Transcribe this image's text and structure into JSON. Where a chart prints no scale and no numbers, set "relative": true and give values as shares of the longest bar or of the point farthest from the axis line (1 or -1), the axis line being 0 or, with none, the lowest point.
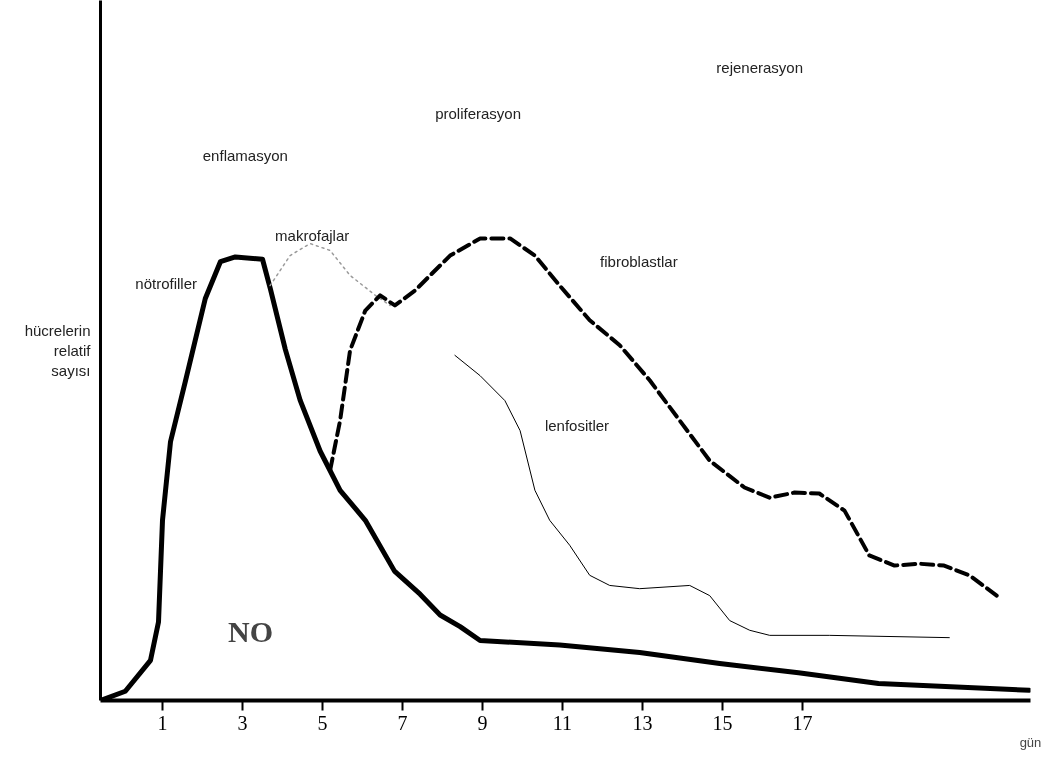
{
  "chart_data": {
    "type": "line",
    "relative": true,
    "xlabel": "gün",
    "ylabel": "hücrelerin relatif sayısı",
    "xlim": [
      -0.55,
      22.7
    ],
    "xticks": [
      1,
      3,
      5,
      7,
      9,
      11,
      13,
      15,
      17
    ],
    "grid": false,
    "annotations": [
      "enflamasyon",
      "proliferasyon",
      "rejenerasyon",
      "NO"
    ],
    "series": [
      {
        "name": "nötrofiller",
        "color": "#000000",
        "line_style": "solid",
        "x": [
          -0.55,
          0.07,
          0.7,
          0.9,
          1.0,
          1.2,
          1.57,
          2.07,
          2.45,
          2.82,
          3.5,
          3.7,
          4.07,
          4.44,
          4.94,
          5.44,
          6.07,
          6.8,
          7.44,
          7.94,
          8.44,
          8.94,
          10.93,
          12.93,
          14.93,
          16.9,
          18.9,
          22.67
        ],
        "values": [
          0,
          0.02,
          0.087,
          0.17,
          0.39,
          0.56,
          0.69,
          0.87,
          0.95,
          0.96,
          0.955,
          0.89,
          0.76,
          0.65,
          0.54,
          0.455,
          0.39,
          0.28,
          0.23,
          0.185,
          0.16,
          0.13,
          0.12,
          0.104,
          0.08,
          0.06,
          0.037,
          0.022
        ]
      },
      {
        "name": "makrofajlar",
        "color": "#999999",
        "line_style": "dotted",
        "x": [
          3.69,
          4.19,
          4.69,
          5.19,
          5.69,
          6.32,
          6.69
        ],
        "values": [
          0.898,
          0.963,
          0.989,
          0.974,
          0.92,
          0.877,
          0.855
        ]
      },
      {
        "name": "fibroblastlar",
        "color": "#000000",
        "line_style": "dashed",
        "x": [
          5.19,
          5.44,
          5.69,
          6.07,
          6.44,
          6.81,
          7.31,
          7.69,
          8.19,
          8.94,
          9.69,
          10.31,
          10.93,
          11.68,
          12.43,
          13.18,
          13.93,
          14.68,
          15.55,
          16.18,
          16.8,
          17.42,
          18.05,
          18.67,
          19.3,
          19.92,
          20.54,
          21.17,
          21.92
        ],
        "values": [
          0.498,
          0.606,
          0.758,
          0.844,
          0.877,
          0.855,
          0.887,
          0.92,
          0.963,
          1.0,
          1.0,
          0.963,
          0.898,
          0.823,
          0.769,
          0.693,
          0.606,
          0.519,
          0.461,
          0.439,
          0.45,
          0.448,
          0.411,
          0.314,
          0.292,
          0.296,
          0.292,
          0.271,
          0.223
        ]
      },
      {
        "name": "lenfositler",
        "color": "#000000",
        "line_style": "solid",
        "x": [
          8.31,
          8.94,
          9.56,
          9.94,
          10.31,
          10.68,
          11.18,
          11.68,
          12.18,
          12.93,
          14.18,
          14.68,
          15.18,
          15.68,
          16.18,
          17.67,
          20.67
        ],
        "values": [
          0.747,
          0.703,
          0.649,
          0.584,
          0.455,
          0.39,
          0.336,
          0.271,
          0.249,
          0.242,
          0.249,
          0.227,
          0.173,
          0.152,
          0.141,
          0.141,
          0.136
        ]
      }
    ]
  }
}
